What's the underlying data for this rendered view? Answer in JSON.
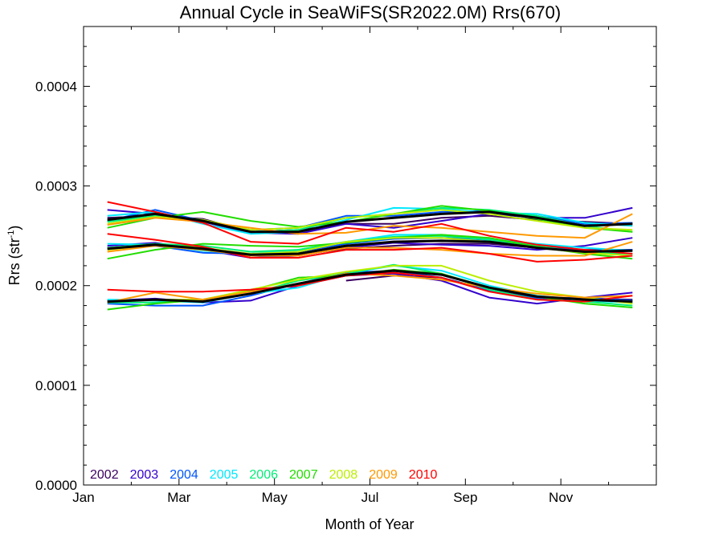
{
  "chart_data": {
    "type": "line",
    "title": "Annual Cycle in SeaWiFS(SR2022.0M) Rrs(670)",
    "xlabel": "Month of Year",
    "ylabel": "Rrs (str",
    "ylabel_sup": "-1",
    "ylabel_close": ")",
    "xlim": [
      0,
      12
    ],
    "ylim": [
      0,
      0.00046
    ],
    "x_ticks": [
      {
        "value": 0,
        "label": "Jan"
      },
      {
        "value": 2,
        "label": "Mar"
      },
      {
        "value": 4,
        "label": "May"
      },
      {
        "value": 6,
        "label": "Jul"
      },
      {
        "value": 8,
        "label": "Sep"
      },
      {
        "value": 10,
        "label": "Nov"
      }
    ],
    "y_ticks": [
      {
        "value": 0,
        "label": "0.0000"
      },
      {
        "value": 0.0001,
        "label": "0.0001"
      },
      {
        "value": 0.0002,
        "label": "0.0002"
      },
      {
        "value": 0.0003,
        "label": "0.0003"
      },
      {
        "value": 0.0004,
        "label": "0.0004"
      }
    ],
    "x": [
      0.5,
      1.5,
      2.5,
      3.5,
      4.5,
      5.5,
      6.5,
      7.5,
      8.5,
      9.5,
      10.5,
      11.5
    ],
    "series": [
      {
        "name": "2002",
        "color": "#3a0060",
        "groups": [
          [
            0.000268,
            0.00027,
            0.000267,
            0.000254,
            0.000256,
            0.000262,
            0.000262,
            0.000268,
            0.00027,
            0.000266,
            0.000264,
            0.000262
          ],
          [
            0.000238,
            0.000241,
            0.000238,
            0.00023,
            0.000231,
            0.000237,
            0.00024,
            0.000242,
            0.000242,
            0.000238,
            0.000236,
            0.000236
          ],
          [
            null,
            null,
            null,
            null,
            null,
            0.000205,
            0.00021,
            0.000208,
            0.000196,
            0.000188,
            0.000187,
            0.000186
          ]
        ]
      },
      {
        "name": "2003",
        "color": "#3300cc",
        "groups": [
          [
            0.000276,
            0.000272,
            0.000264,
            0.000253,
            0.000252,
            0.000262,
            0.000258,
            0.000265,
            0.000272,
            0.000268,
            0.000268,
            0.000278
          ],
          [
            0.00024,
            0.000243,
            0.000236,
            0.000228,
            0.00023,
            0.000238,
            0.000243,
            0.000241,
            0.00024,
            0.000236,
            0.00024,
            0.000248
          ],
          [
            0.000185,
            0.000187,
            0.000183,
            0.000185,
            0.0002,
            0.00021,
            0.000212,
            0.000205,
            0.000188,
            0.000182,
            0.000188,
            0.000193
          ]
        ]
      },
      {
        "name": "2004",
        "color": "#0055ff",
        "groups": [
          [
            0.000265,
            0.000276,
            0.000265,
            0.000256,
            0.000258,
            0.00027,
            0.00027,
            0.000274,
            0.000275,
            0.00027,
            0.000262,
            0.000263
          ],
          [
            0.000238,
            0.00024,
            0.000233,
            0.000232,
            0.000234,
            0.000242,
            0.000247,
            0.000248,
            0.000246,
            0.00024,
            0.000235,
            0.000236
          ],
          [
            0.000182,
            0.00018,
            0.00018,
            0.00019,
            0.000202,
            0.000213,
            0.000215,
            0.000208,
            0.000195,
            0.000187,
            0.000188,
            0.000185
          ]
        ]
      },
      {
        "name": "2005",
        "color": "#00e8ff",
        "groups": [
          [
            0.00027,
            0.000274,
            0.000262,
            0.000252,
            0.000254,
            0.000266,
            0.000278,
            0.000277,
            0.000273,
            0.000272,
            0.000263,
            0.00026
          ],
          [
            0.000242,
            0.000241,
            0.000235,
            0.000232,
            0.000236,
            0.000244,
            0.000251,
            0.000251,
            0.000247,
            0.000242,
            0.000238,
            0.000235
          ],
          [
            0.000186,
            0.000185,
            0.000183,
            0.000192,
            0.000198,
            0.000212,
            0.00022,
            0.000215,
            0.0002,
            0.00019,
            0.000185,
            0.000183
          ]
        ]
      },
      {
        "name": "2006",
        "color": "#00ee77",
        "groups": [
          [
            0.000264,
            0.00027,
            0.000266,
            0.000254,
            0.000256,
            0.000268,
            0.000272,
            0.000278,
            0.000276,
            0.00027,
            0.00026,
            0.000254
          ],
          [
            0.000238,
            0.000242,
            0.00024,
            0.000234,
            0.000236,
            0.000244,
            0.000249,
            0.00025,
            0.000246,
            0.00024,
            0.000233,
            0.000232
          ],
          [
            0.000183,
            0.000183,
            0.000185,
            0.000192,
            0.000205,
            0.000212,
            0.000221,
            0.000212,
            0.000196,
            0.000186,
            0.000184,
            0.00018
          ]
        ]
      },
      {
        "name": "2007",
        "color": "#22dd00",
        "groups": [
          [
            0.000258,
            0.000268,
            0.000274,
            0.000265,
            0.000259,
            0.000264,
            0.000272,
            0.00028,
            0.000275,
            0.000267,
            0.000258,
            0.000254
          ],
          [
            0.000227,
            0.000236,
            0.000242,
            0.00024,
            0.000239,
            0.000243,
            0.000248,
            0.000251,
            0.000248,
            0.000239,
            0.000232,
            0.000227
          ],
          [
            0.000176,
            0.000182,
            0.000186,
            0.000195,
            0.000208,
            0.00021,
            0.000216,
            0.000212,
            0.000198,
            0.000189,
            0.000182,
            0.000178
          ]
        ]
      },
      {
        "name": "2008",
        "color": "#bbee00",
        "groups": [
          [
            0.000262,
            0.000269,
            0.000266,
            0.000256,
            0.000258,
            0.000268,
            0.000272,
            0.000276,
            0.000272,
            0.000265,
            0.000258,
            0.000256
          ],
          [
            0.000236,
            0.000241,
            0.000238,
            0.000232,
            0.000234,
            0.000244,
            0.000248,
            0.000248,
            0.000244,
            0.000238,
            0.000233,
            0.00023
          ],
          [
            0.000184,
            0.000186,
            0.000186,
            0.000196,
            0.000206,
            0.000214,
            0.00022,
            0.00022,
            0.000205,
            0.000194,
            0.000188,
            0.000182
          ]
        ]
      },
      {
        "name": "2009",
        "color": "#ff9900",
        "groups": [
          [
            0.000261,
            0.000268,
            0.000264,
            0.000258,
            0.000252,
            0.000253,
            0.00026,
            0.000258,
            0.000254,
            0.00025,
            0.000248,
            0.000272
          ],
          [
            0.000234,
            0.00024,
            0.000236,
            0.00023,
            0.00023,
            0.000238,
            0.000238,
            0.000236,
            0.000232,
            0.00023,
            0.00023,
            0.000244
          ],
          [
            0.000183,
            0.000193,
            0.000186,
            0.000194,
            0.000202,
            0.000212,
            0.00021,
            0.000206,
            0.000198,
            0.000192,
            0.000188,
            0.00019
          ]
        ]
      },
      {
        "name": "2010",
        "color": "#ff0000",
        "groups": [
          [
            0.000284,
            0.000274,
            0.000263,
            0.000244,
            0.000242,
            0.000258,
            0.000254,
            0.000262,
            0.00025,
            0.000241,
            0.000236,
            0.000232
          ],
          [
            0.000252,
            0.000246,
            0.000239,
            0.000228,
            0.000228,
            0.000236,
            0.000236,
            0.000238,
            0.000232,
            0.000224,
            0.000226,
            0.00023
          ],
          [
            0.000196,
            0.000194,
            0.000194,
            0.000196,
            0.0002,
            0.00021,
            0.000213,
            0.000208,
            0.000194,
            0.000186,
            0.000184,
            0.00019
          ]
        ]
      },
      {
        "color": "#000000",
        "bold": true,
        "groups": [
          [
            0.000266,
            0.000272,
            0.000265,
            0.000254,
            0.000254,
            0.000264,
            0.000268,
            0.000272,
            0.000274,
            0.000268,
            0.00026,
            0.000262
          ],
          [
            0.000237,
            0.000241,
            0.000237,
            0.000231,
            0.000232,
            0.00024,
            0.000244,
            0.000245,
            0.000244,
            0.000238,
            0.000234,
            0.000235
          ],
          [
            0.000184,
            0.000186,
            0.000184,
            0.000192,
            0.000202,
            0.000211,
            0.000215,
            0.000211,
            0.000198,
            0.000189,
            0.000186,
            0.000184
          ]
        ]
      }
    ]
  }
}
